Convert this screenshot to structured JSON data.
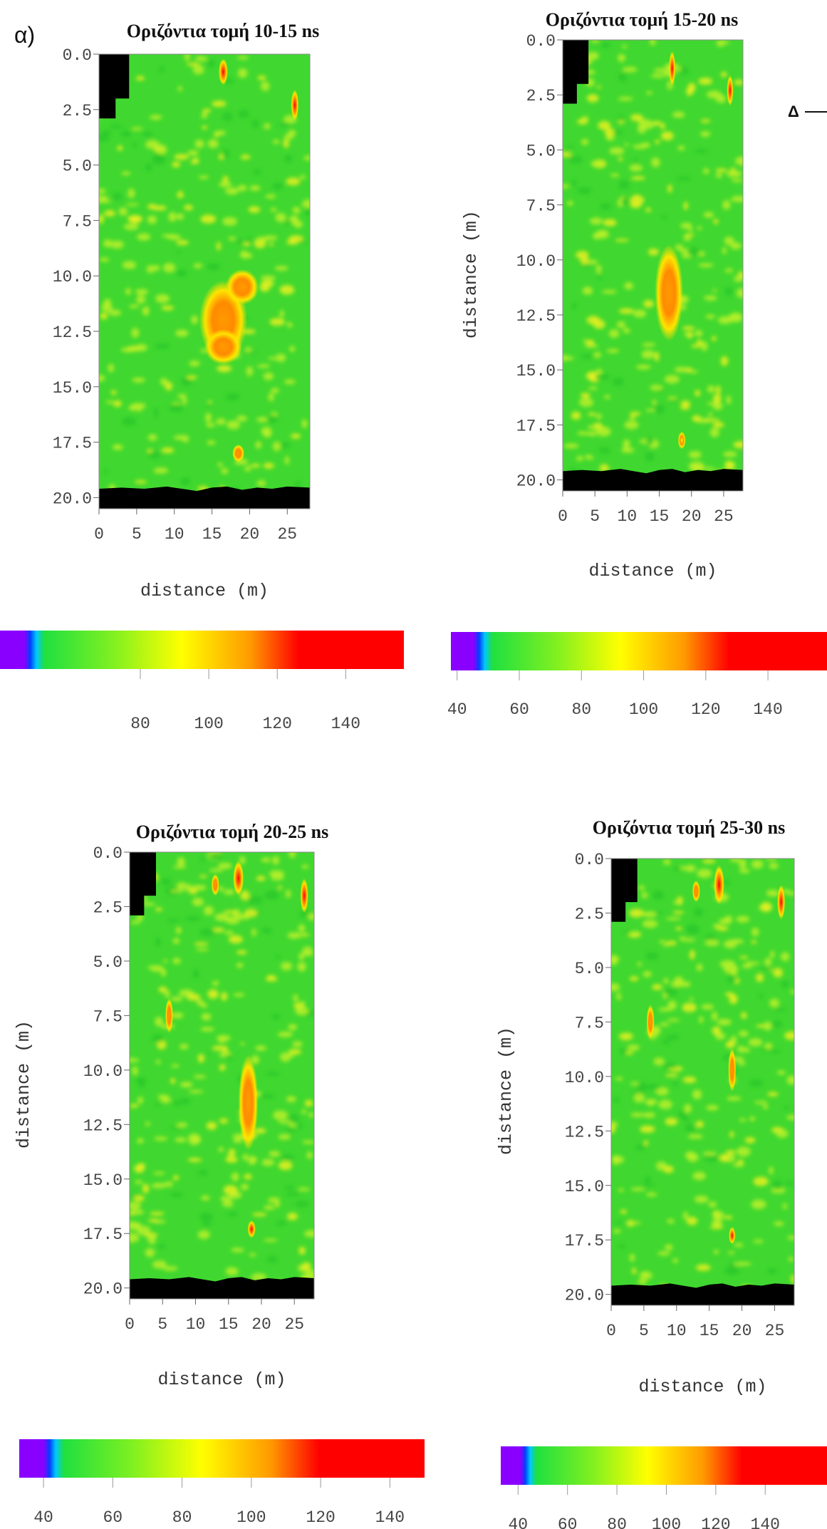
{
  "panel_label": "α)",
  "side_marker": "Δ",
  "colors": {
    "ramp": [
      "#8a00ff",
      "#0040ff",
      "#00c8ff",
      "#20e040",
      "#80f020",
      "#ffff00",
      "#ff9a00",
      "#ff0000",
      "#ff0000"
    ],
    "mask": "#000000",
    "background": "#40d830"
  },
  "chart_data": [
    {
      "type": "heatmap",
      "title": "Οριζόντια τομή 10-15 ns",
      "xlabel": "distance (m)",
      "ylabel": "",
      "x_ticks": [
        "0",
        "5",
        "10",
        "15",
        "20",
        "25"
      ],
      "y_ticks": [
        "0.0",
        "2.5",
        "5.0",
        "7.5",
        "10.0",
        "12.5",
        "15.0",
        "17.5",
        "20.0"
      ],
      "xlim": [
        0,
        28
      ],
      "ylim": [
        0,
        20.5
      ],
      "anomalies": [
        {
          "x": 16.5,
          "y": 12.0,
          "sx": 3.2,
          "sy": 1.8,
          "value": 125
        },
        {
          "x": 19.0,
          "y": 10.5,
          "sx": 2.2,
          "sy": 0.8,
          "value": 120
        },
        {
          "x": 16.5,
          "y": 13.2,
          "sx": 2.5,
          "sy": 0.8,
          "value": 125
        },
        {
          "x": 16.5,
          "y": 0.8,
          "sx": 0.6,
          "sy": 0.6,
          "value": 135
        },
        {
          "x": 26.0,
          "y": 2.3,
          "sx": 0.5,
          "sy": 0.7,
          "value": 140
        },
        {
          "x": 18.5,
          "y": 18.0,
          "sx": 0.8,
          "sy": 0.4,
          "value": 120
        }
      ],
      "colorbar_ticks": [
        "80",
        "100",
        "120",
        "140"
      ]
    },
    {
      "type": "heatmap",
      "title": "Οριζόντια τομή 15-20 ns",
      "xlabel": "distance (m)",
      "ylabel": "distance (m)",
      "x_ticks": [
        "0",
        "5",
        "10",
        "15",
        "20",
        "25"
      ],
      "y_ticks": [
        "0.0",
        "2.5",
        "5.0",
        "7.5",
        "10.0",
        "12.5",
        "15.0",
        "17.5",
        "20.0"
      ],
      "xlim": [
        0,
        28
      ],
      "ylim": [
        0,
        20.5
      ],
      "anomalies": [
        {
          "x": 16.5,
          "y": 11.5,
          "sx": 2.2,
          "sy": 2.2,
          "value": 125
        },
        {
          "x": 17.0,
          "y": 1.3,
          "sx": 0.5,
          "sy": 0.8,
          "value": 135
        },
        {
          "x": 26.0,
          "y": 2.3,
          "sx": 0.5,
          "sy": 0.7,
          "value": 140
        },
        {
          "x": 18.5,
          "y": 18.2,
          "sx": 0.6,
          "sy": 0.4,
          "value": 115
        }
      ],
      "colorbar_ticks": [
        "40",
        "60",
        "80",
        "100",
        "120",
        "140"
      ]
    },
    {
      "type": "heatmap",
      "title": "Οριζόντια τομή 20-25 ns",
      "xlabel": "distance (m)",
      "ylabel": "distance (m)",
      "x_ticks": [
        "0",
        "5",
        "10",
        "15",
        "20",
        "25"
      ],
      "y_ticks": [
        "0.0",
        "2.5",
        "5.0",
        "7.5",
        "10.0",
        "12.5",
        "15.0",
        "17.5",
        "20.0"
      ],
      "xlim": [
        0,
        28
      ],
      "ylim": [
        0,
        20.5
      ],
      "anomalies": [
        {
          "x": 18.0,
          "y": 11.5,
          "sx": 1.5,
          "sy": 2.2,
          "value": 125
        },
        {
          "x": 16.5,
          "y": 1.2,
          "sx": 0.8,
          "sy": 0.8,
          "value": 140
        },
        {
          "x": 26.5,
          "y": 2.0,
          "sx": 0.6,
          "sy": 0.8,
          "value": 140
        },
        {
          "x": 6.0,
          "y": 7.5,
          "sx": 0.6,
          "sy": 0.8,
          "value": 120
        },
        {
          "x": 18.5,
          "y": 17.3,
          "sx": 0.6,
          "sy": 0.4,
          "value": 135
        },
        {
          "x": 13.0,
          "y": 1.5,
          "sx": 0.6,
          "sy": 0.5,
          "value": 120
        }
      ],
      "colorbar_ticks": [
        "40",
        "60",
        "80",
        "100",
        "120",
        "140"
      ]
    },
    {
      "type": "heatmap",
      "title": "Οριζόντια τομή 25-30 ns",
      "xlabel": "distance (m)",
      "ylabel": "distance (m)",
      "x_ticks": [
        "0",
        "5",
        "10",
        "15",
        "20",
        "25"
      ],
      "y_ticks": [
        "0.0",
        "2.5",
        "5.0",
        "7.5",
        "10.0",
        "12.5",
        "15.0",
        "17.5",
        "20.0"
      ],
      "xlim": [
        0,
        28
      ],
      "ylim": [
        0,
        20.5
      ],
      "anomalies": [
        {
          "x": 16.5,
          "y": 1.2,
          "sx": 0.8,
          "sy": 0.9,
          "value": 140
        },
        {
          "x": 26.0,
          "y": 2.0,
          "sx": 0.6,
          "sy": 0.8,
          "value": 140
        },
        {
          "x": 18.5,
          "y": 9.7,
          "sx": 0.6,
          "sy": 1.0,
          "value": 125
        },
        {
          "x": 6.0,
          "y": 7.5,
          "sx": 0.6,
          "sy": 0.8,
          "value": 120
        },
        {
          "x": 18.5,
          "y": 17.3,
          "sx": 0.5,
          "sy": 0.4,
          "value": 130
        },
        {
          "x": 13.0,
          "y": 1.5,
          "sx": 0.6,
          "sy": 0.5,
          "value": 120
        }
      ],
      "colorbar_ticks": [
        "40",
        "60",
        "80",
        "100",
        "120",
        "140"
      ]
    }
  ]
}
